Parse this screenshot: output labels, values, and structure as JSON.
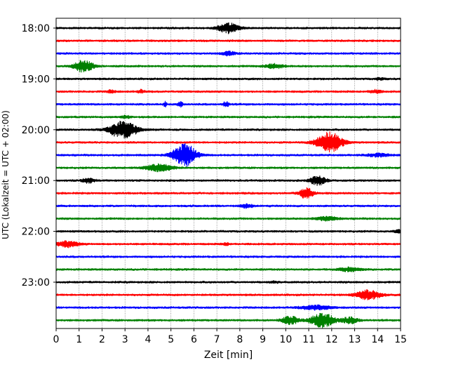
{
  "chart_data": {
    "type": "line",
    "title": "",
    "xlabel": "Zeit  [min]",
    "ylabel": "UTC (Lokalzeit = UTC + 02:00)",
    "xlim": [
      0,
      15
    ],
    "x_ticks": [
      "0",
      "1",
      "2",
      "3",
      "4",
      "5",
      "6",
      "7",
      "8",
      "9",
      "10",
      "11",
      "12",
      "13",
      "14",
      "15"
    ],
    "y_ticks": [
      "18:00",
      "19:00",
      "20:00",
      "21:00",
      "22:00",
      "23:00"
    ],
    "grid": "vertical dotted at each minute",
    "trace_colors": [
      "#000000",
      "#ff0000",
      "#0000ff",
      "#008000"
    ],
    "trace_interval_minutes": 15,
    "traces": [
      {
        "start": "18:00",
        "color": "#000000",
        "bursts": [
          [
            7.5,
            2.6,
            0.45
          ]
        ]
      },
      {
        "start": "18:15",
        "color": "#ff0000",
        "bursts": []
      },
      {
        "start": "18:30",
        "color": "#0000ff",
        "bursts": [
          [
            7.5,
            1.0,
            0.3
          ]
        ]
      },
      {
        "start": "18:45",
        "color": "#008000",
        "bursts": [
          [
            1.2,
            3.2,
            0.4
          ],
          [
            9.5,
            1.2,
            0.4
          ]
        ]
      },
      {
        "start": "19:00",
        "color": "#000000",
        "bursts": [
          [
            14.1,
            0.5,
            0.2
          ]
        ]
      },
      {
        "start": "19:15",
        "color": "#ff0000",
        "bursts": [
          [
            2.4,
            0.8,
            0.15
          ],
          [
            3.7,
            0.8,
            0.15
          ],
          [
            13.9,
            0.8,
            0.25
          ]
        ]
      },
      {
        "start": "19:30",
        "color": "#0000ff",
        "bursts": [
          [
            4.75,
            1.4,
            0.06
          ],
          [
            5.4,
            1.6,
            0.1
          ],
          [
            7.4,
            1.4,
            0.12
          ]
        ]
      },
      {
        "start": "19:45",
        "color": "#008000",
        "bursts": [
          [
            3.0,
            0.6,
            0.2
          ]
        ]
      },
      {
        "start": "20:00",
        "color": "#000000",
        "bursts": [
          [
            2.9,
            4.5,
            0.6
          ]
        ]
      },
      {
        "start": "20:15",
        "color": "#ff0000",
        "bursts": [
          [
            11.9,
            5.5,
            0.55
          ]
        ]
      },
      {
        "start": "20:30",
        "color": "#0000ff",
        "bursts": [
          [
            5.6,
            6.0,
            0.5
          ],
          [
            14.0,
            0.8,
            0.5
          ]
        ]
      },
      {
        "start": "20:45",
        "color": "#008000",
        "bursts": [
          [
            4.5,
            2.0,
            0.55
          ]
        ]
      },
      {
        "start": "21:00",
        "color": "#000000",
        "bursts": [
          [
            1.4,
            1.3,
            0.25
          ],
          [
            11.4,
            2.3,
            0.35
          ]
        ]
      },
      {
        "start": "21:15",
        "color": "#ff0000",
        "bursts": [
          [
            10.9,
            2.8,
            0.3
          ]
        ]
      },
      {
        "start": "21:30",
        "color": "#0000ff",
        "bursts": [
          [
            8.3,
            1.1,
            0.25
          ]
        ]
      },
      {
        "start": "21:45",
        "color": "#008000",
        "bursts": [
          [
            11.8,
            1.1,
            0.4
          ]
        ]
      },
      {
        "start": "22:00",
        "color": "#000000",
        "bursts": [
          [
            14.9,
            0.8,
            0.15
          ]
        ]
      },
      {
        "start": "22:15",
        "color": "#ff0000",
        "bursts": [
          [
            0.5,
            1.6,
            0.45
          ],
          [
            7.4,
            0.6,
            0.15
          ]
        ]
      },
      {
        "start": "22:30",
        "color": "#0000ff",
        "bursts": []
      },
      {
        "start": "22:45",
        "color": "#008000",
        "bursts": [
          [
            12.8,
            1.0,
            0.45
          ]
        ]
      },
      {
        "start": "23:00",
        "color": "#000000",
        "bursts": [
          [
            9.5,
            0.4,
            0.2
          ]
        ]
      },
      {
        "start": "23:15",
        "color": "#ff0000",
        "bursts": [
          [
            13.6,
            2.5,
            0.5
          ]
        ]
      },
      {
        "start": "23:30",
        "color": "#0000ff",
        "bursts": [
          [
            11.3,
            1.2,
            0.6
          ]
        ]
      },
      {
        "start": "23:45",
        "color": "#008000",
        "bursts": [
          [
            10.2,
            2.2,
            0.35
          ],
          [
            11.6,
            4.0,
            0.5
          ],
          [
            12.8,
            1.6,
            0.35
          ]
        ]
      }
    ]
  }
}
